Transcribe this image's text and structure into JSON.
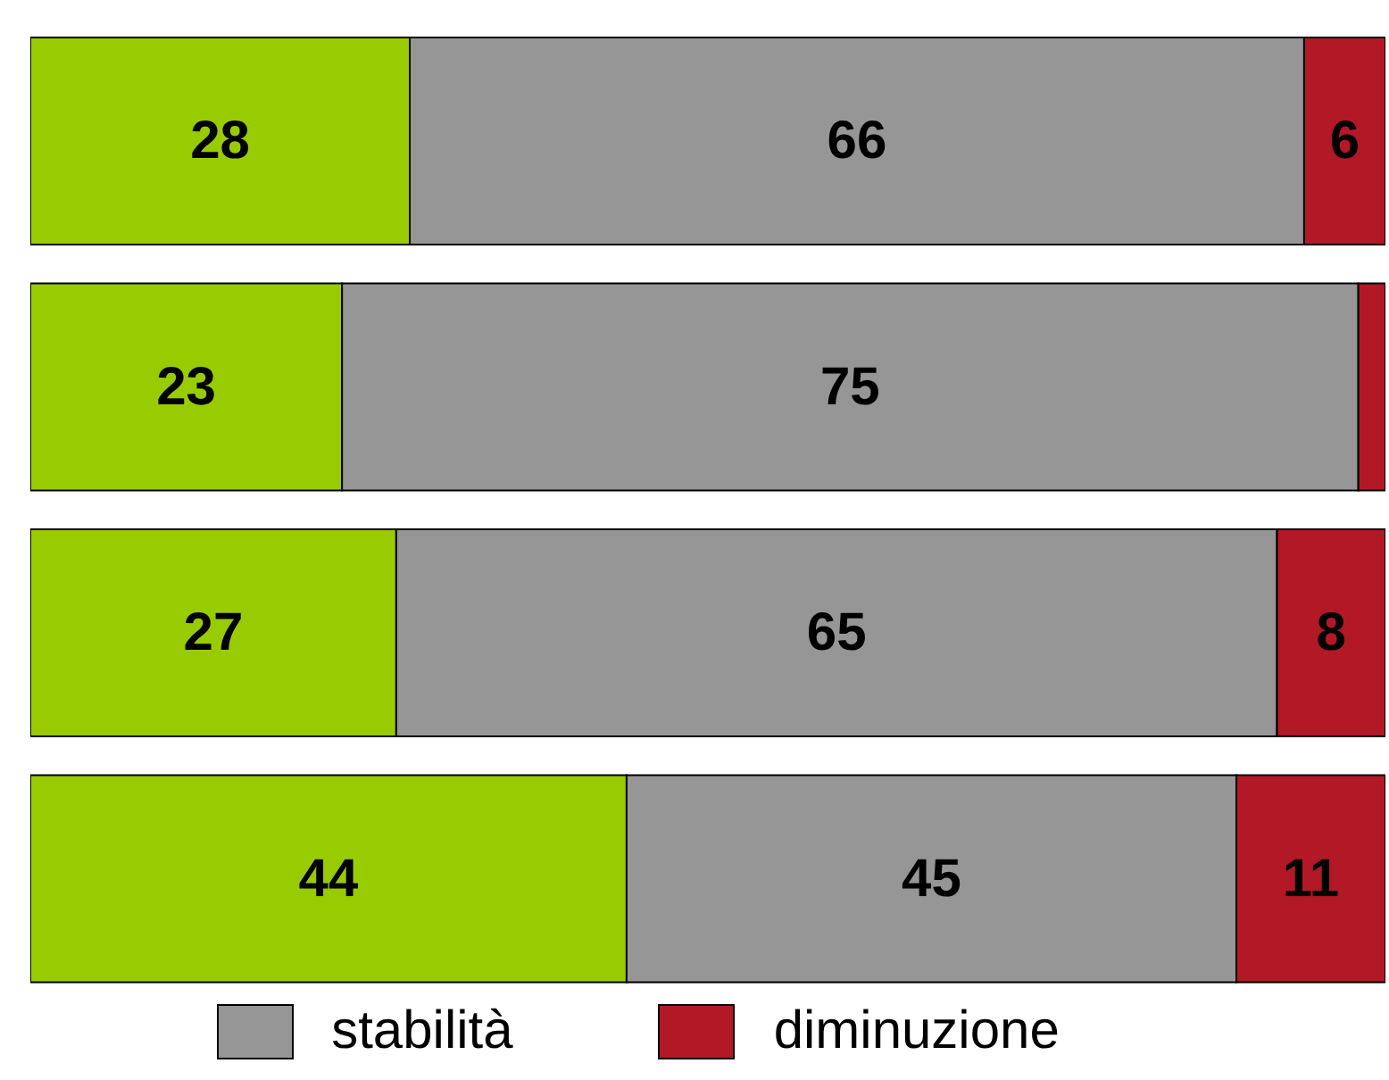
{
  "chart_data": {
    "type": "bar",
    "orientation": "horizontal",
    "stacked": true,
    "categories": [
      null,
      null,
      null,
      null
    ],
    "xlim": [
      0,
      100
    ],
    "series": [
      {
        "color": "#99cc00",
        "values": [
          28,
          23,
          27,
          44
        ],
        "value_labels": [
          "28",
          "23",
          "27",
          "44"
        ]
      },
      {
        "name": "stabilità",
        "color": "#969696",
        "values": [
          66,
          75,
          65,
          45
        ],
        "value_labels": [
          "66",
          "75",
          "65",
          "45"
        ]
      },
      {
        "name": "diminuzione",
        "color": "#b31827",
        "values": [
          6,
          2,
          8,
          11
        ],
        "value_labels": [
          "6",
          null,
          "8",
          "11"
        ]
      }
    ],
    "legend": "bottom"
  }
}
